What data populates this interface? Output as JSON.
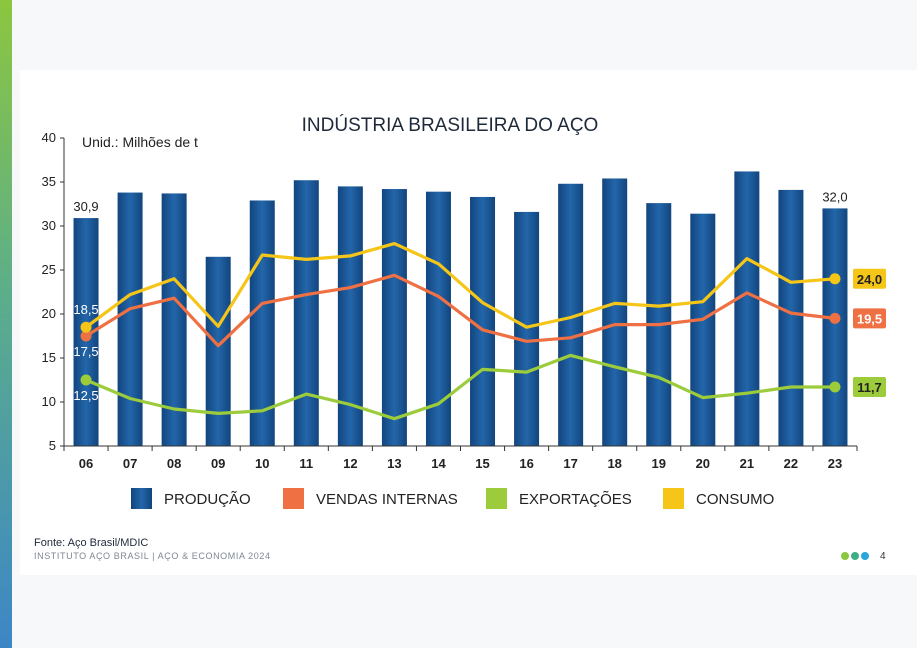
{
  "chart_data": {
    "type": "bar",
    "title": "INDÚSTRIA BRASILEIRA DO AÇO",
    "unit_label": "Unid.: Milhões de t",
    "categories": [
      "06",
      "07",
      "08",
      "09",
      "10",
      "11",
      "12",
      "13",
      "14",
      "15",
      "16",
      "17",
      "18",
      "19",
      "20",
      "21",
      "22",
      "23"
    ],
    "ylim": [
      5,
      40
    ],
    "yticks": [
      5,
      10,
      15,
      20,
      25,
      30,
      35,
      40
    ],
    "series": [
      {
        "name": "PRODUÇÃO",
        "kind": "bar",
        "color": "#1d5a9c",
        "values": [
          30.9,
          33.8,
          33.7,
          26.5,
          32.9,
          35.2,
          34.5,
          34.2,
          33.9,
          33.3,
          31.6,
          34.8,
          35.4,
          32.6,
          31.4,
          36.2,
          34.1,
          32.0
        ]
      },
      {
        "name": "VENDAS INTERNAS",
        "kind": "line",
        "color": "#ee7043",
        "values": [
          17.5,
          20.6,
          21.8,
          16.4,
          21.2,
          22.2,
          23.0,
          24.4,
          22.0,
          18.2,
          16.9,
          17.3,
          18.8,
          18.8,
          19.4,
          22.4,
          20.1,
          19.5
        ]
      },
      {
        "name": "EXPORTAÇÕES",
        "kind": "line",
        "color": "#9ccb3b",
        "values": [
          12.5,
          10.4,
          9.2,
          8.7,
          9.0,
          10.9,
          9.7,
          8.1,
          9.8,
          13.7,
          13.4,
          15.3,
          14.0,
          12.8,
          10.5,
          11.0,
          11.7,
          11.7
        ]
      },
      {
        "name": "CONSUMO",
        "kind": "line",
        "color": "#f5c518",
        "values": [
          18.5,
          22.2,
          24.0,
          18.6,
          26.7,
          26.2,
          26.6,
          28.0,
          25.7,
          21.3,
          18.5,
          19.6,
          21.2,
          20.9,
          21.4,
          26.3,
          23.6,
          24.0
        ]
      }
    ],
    "bar_labels": {
      "first": "30,9",
      "last": "32,0"
    },
    "start_labels": {
      "consumo": "18,5",
      "vendas": "17,5",
      "exportacoes": "12,5"
    },
    "end_labels": {
      "consumo": "24,0",
      "vendas": "19,5",
      "exportacoes": "11,7"
    },
    "legend_position": "bottom"
  },
  "footer": {
    "source": "Fonte: Aço Brasil/MDIC",
    "institute": "INSTITUTO AÇO BRASIL | AÇO & ECONOMIA 2024",
    "page": "4",
    "dot_colors": [
      "#8cc63f",
      "#3fae87",
      "#2aa6d8"
    ]
  }
}
